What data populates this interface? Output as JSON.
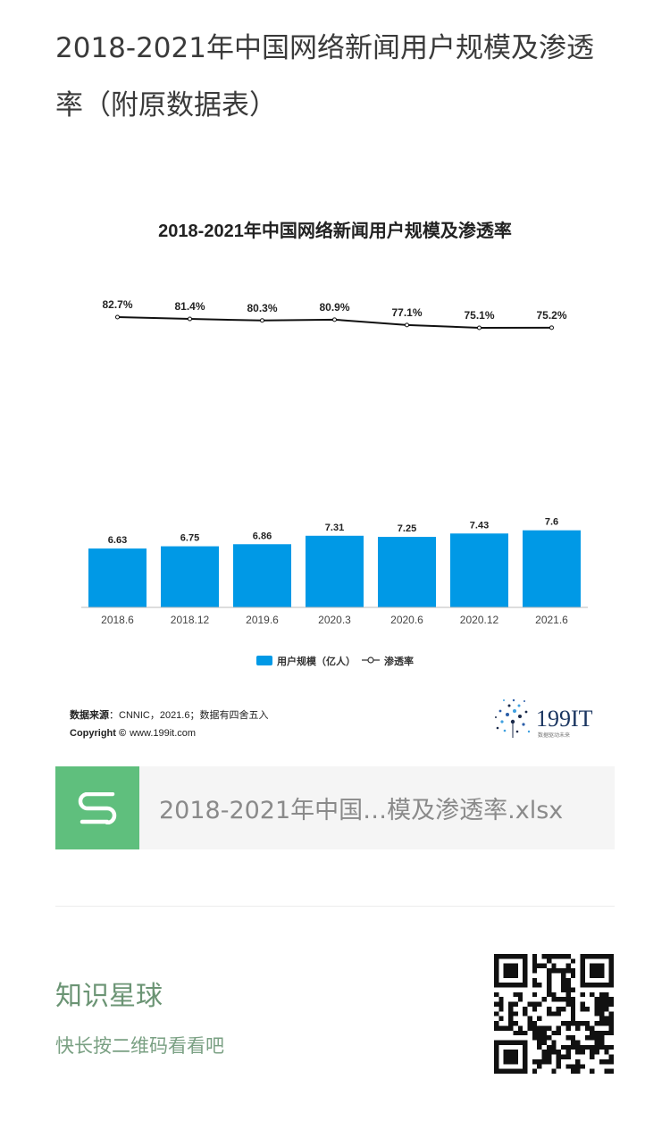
{
  "article": {
    "title": "2018-2021年中国网络新闻用户规模及渗透率（附原数据表）"
  },
  "chart_data": {
    "type": "bar",
    "title": "2018-2021年中国网络新闻用户规模及渗透率",
    "categories": [
      "2018.6",
      "2018.12",
      "2019.6",
      "2020.3",
      "2020.6",
      "2020.12",
      "2021.6"
    ],
    "series": [
      {
        "name": "用户规模（亿人）",
        "type": "bar",
        "color": "#0099e6",
        "values": [
          6.63,
          6.75,
          6.86,
          7.31,
          7.25,
          7.43,
          7.6
        ],
        "labels": [
          "6.63",
          "6.75",
          "6.86",
          "7.31",
          "7.25",
          "7.43",
          "7.6"
        ]
      },
      {
        "name": "渗透率",
        "type": "line",
        "color": "#111111",
        "values": [
          82.7,
          81.4,
          80.3,
          80.9,
          77.1,
          75.1,
          75.2
        ],
        "labels": [
          "82.7%",
          "81.4%",
          "80.3%",
          "80.9%",
          "77.1%",
          "75.1%",
          "75.2%"
        ]
      }
    ],
    "legend": {
      "position": "bottom",
      "bar_label": "用户规模（亿人）",
      "line_label": "渗透率"
    },
    "source": {
      "label": "数据来源",
      "text": "：CNNIC，2021.6；数据有四舍五入",
      "copyright_label": "Copyright ©",
      "site": "www.199it.com"
    },
    "logo": {
      "text": "199IT",
      "tagline": "数据驱动未来"
    }
  },
  "attachment": {
    "icon": "spreadsheet-s-icon",
    "color": "#5fbf7d",
    "file_name": "2018-2021年中国…模及渗透率.xlsx"
  },
  "footer": {
    "title": "知识星球",
    "subtitle": "快长按二维码看看吧",
    "qr_icon": "qr-code-icon"
  }
}
